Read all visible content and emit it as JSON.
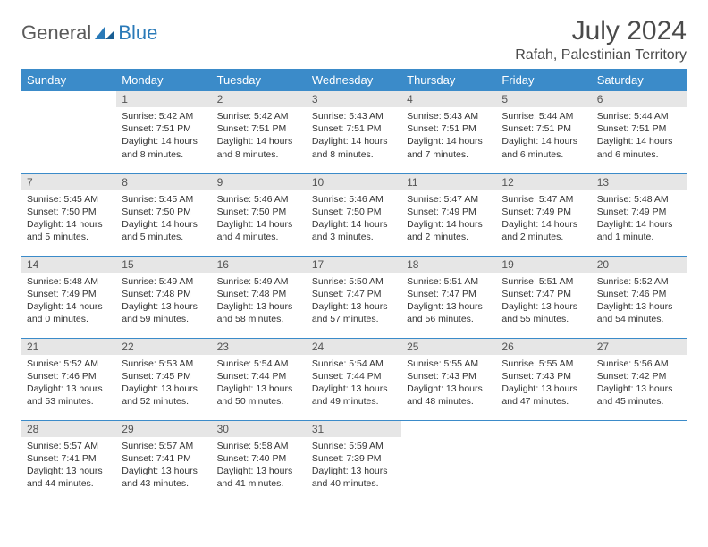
{
  "brand": {
    "name_part1": "General",
    "name_part2": "Blue"
  },
  "title": "July 2024",
  "location": "Rafah, Palestinian Territory",
  "colors": {
    "header_bg": "#3b8bc9",
    "header_text": "#ffffff",
    "daynum_bg": "#e6e6e6",
    "rule": "#3b8bc9",
    "text": "#333333",
    "brand_gray": "#5a5a5a",
    "brand_blue": "#2a7ab8"
  },
  "weekdays": [
    "Sunday",
    "Monday",
    "Tuesday",
    "Wednesday",
    "Thursday",
    "Friday",
    "Saturday"
  ],
  "weeks": [
    [
      {
        "n": "",
        "sr": "",
        "ss": "",
        "dl": ""
      },
      {
        "n": "1",
        "sr": "5:42 AM",
        "ss": "7:51 PM",
        "dl": "14 hours and 8 minutes."
      },
      {
        "n": "2",
        "sr": "5:42 AM",
        "ss": "7:51 PM",
        "dl": "14 hours and 8 minutes."
      },
      {
        "n": "3",
        "sr": "5:43 AM",
        "ss": "7:51 PM",
        "dl": "14 hours and 8 minutes."
      },
      {
        "n": "4",
        "sr": "5:43 AM",
        "ss": "7:51 PM",
        "dl": "14 hours and 7 minutes."
      },
      {
        "n": "5",
        "sr": "5:44 AM",
        "ss": "7:51 PM",
        "dl": "14 hours and 6 minutes."
      },
      {
        "n": "6",
        "sr": "5:44 AM",
        "ss": "7:51 PM",
        "dl": "14 hours and 6 minutes."
      }
    ],
    [
      {
        "n": "7",
        "sr": "5:45 AM",
        "ss": "7:50 PM",
        "dl": "14 hours and 5 minutes."
      },
      {
        "n": "8",
        "sr": "5:45 AM",
        "ss": "7:50 PM",
        "dl": "14 hours and 5 minutes."
      },
      {
        "n": "9",
        "sr": "5:46 AM",
        "ss": "7:50 PM",
        "dl": "14 hours and 4 minutes."
      },
      {
        "n": "10",
        "sr": "5:46 AM",
        "ss": "7:50 PM",
        "dl": "14 hours and 3 minutes."
      },
      {
        "n": "11",
        "sr": "5:47 AM",
        "ss": "7:49 PM",
        "dl": "14 hours and 2 minutes."
      },
      {
        "n": "12",
        "sr": "5:47 AM",
        "ss": "7:49 PM",
        "dl": "14 hours and 2 minutes."
      },
      {
        "n": "13",
        "sr": "5:48 AM",
        "ss": "7:49 PM",
        "dl": "14 hours and 1 minute."
      }
    ],
    [
      {
        "n": "14",
        "sr": "5:48 AM",
        "ss": "7:49 PM",
        "dl": "14 hours and 0 minutes."
      },
      {
        "n": "15",
        "sr": "5:49 AM",
        "ss": "7:48 PM",
        "dl": "13 hours and 59 minutes."
      },
      {
        "n": "16",
        "sr": "5:49 AM",
        "ss": "7:48 PM",
        "dl": "13 hours and 58 minutes."
      },
      {
        "n": "17",
        "sr": "5:50 AM",
        "ss": "7:47 PM",
        "dl": "13 hours and 57 minutes."
      },
      {
        "n": "18",
        "sr": "5:51 AM",
        "ss": "7:47 PM",
        "dl": "13 hours and 56 minutes."
      },
      {
        "n": "19",
        "sr": "5:51 AM",
        "ss": "7:47 PM",
        "dl": "13 hours and 55 minutes."
      },
      {
        "n": "20",
        "sr": "5:52 AM",
        "ss": "7:46 PM",
        "dl": "13 hours and 54 minutes."
      }
    ],
    [
      {
        "n": "21",
        "sr": "5:52 AM",
        "ss": "7:46 PM",
        "dl": "13 hours and 53 minutes."
      },
      {
        "n": "22",
        "sr": "5:53 AM",
        "ss": "7:45 PM",
        "dl": "13 hours and 52 minutes."
      },
      {
        "n": "23",
        "sr": "5:54 AM",
        "ss": "7:44 PM",
        "dl": "13 hours and 50 minutes."
      },
      {
        "n": "24",
        "sr": "5:54 AM",
        "ss": "7:44 PM",
        "dl": "13 hours and 49 minutes."
      },
      {
        "n": "25",
        "sr": "5:55 AM",
        "ss": "7:43 PM",
        "dl": "13 hours and 48 minutes."
      },
      {
        "n": "26",
        "sr": "5:55 AM",
        "ss": "7:43 PM",
        "dl": "13 hours and 47 minutes."
      },
      {
        "n": "27",
        "sr": "5:56 AM",
        "ss": "7:42 PM",
        "dl": "13 hours and 45 minutes."
      }
    ],
    [
      {
        "n": "28",
        "sr": "5:57 AM",
        "ss": "7:41 PM",
        "dl": "13 hours and 44 minutes."
      },
      {
        "n": "29",
        "sr": "5:57 AM",
        "ss": "7:41 PM",
        "dl": "13 hours and 43 minutes."
      },
      {
        "n": "30",
        "sr": "5:58 AM",
        "ss": "7:40 PM",
        "dl": "13 hours and 41 minutes."
      },
      {
        "n": "31",
        "sr": "5:59 AM",
        "ss": "7:39 PM",
        "dl": "13 hours and 40 minutes."
      },
      {
        "n": "",
        "sr": "",
        "ss": "",
        "dl": ""
      },
      {
        "n": "",
        "sr": "",
        "ss": "",
        "dl": ""
      },
      {
        "n": "",
        "sr": "",
        "ss": "",
        "dl": ""
      }
    ]
  ],
  "labels": {
    "sunrise": "Sunrise:",
    "sunset": "Sunset:",
    "daylight": "Daylight:"
  }
}
